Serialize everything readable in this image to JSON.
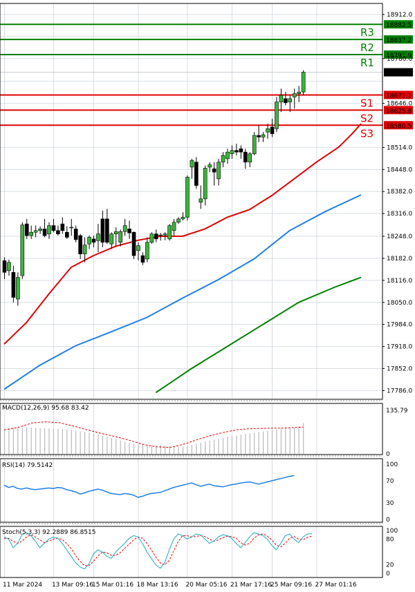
{
  "chart_data": {
    "type": "candlestick",
    "main": {
      "ylim": [
        17760,
        18945
      ],
      "y_ticks": [
        17786.0,
        17852.0,
        17918.0,
        17984.0,
        18050.0,
        18116.0,
        18182.0,
        18248.0,
        18316.0,
        18382.0,
        18448.0,
        18514.0,
        18580.5,
        18646.0,
        18712.0,
        18780.0,
        18846.0,
        18912.0
      ],
      "y_tick_labels": [
        "17786.0",
        "17852.0",
        "17918.0",
        "17984.0",
        "18050.0",
        "18116.0",
        "18182.0",
        "18248.0",
        "18316.0",
        "18382.0",
        "18448.0",
        "18514.0",
        "",
        "18646.0",
        "",
        "18780.0",
        "",
        "18912.0"
      ],
      "current_price": {
        "value": 18739.0,
        "label": "18739.0"
      },
      "levels": [
        {
          "name": "R3",
          "value": 18882.5,
          "label": "18882.5",
          "color": "#008000"
        },
        {
          "name": "R2",
          "value": 18837.2,
          "label": "18837.2",
          "color": "#008000"
        },
        {
          "name": "R1",
          "value": 18791.9,
          "label": "18791.9",
          "color": "#008000"
        },
        {
          "name": "S1",
          "value": 18671.1,
          "label": "18671.1",
          "color": "#e00000"
        },
        {
          "name": "S2",
          "value": 18625.8,
          "label": "18625.8",
          "color": "#e00000"
        },
        {
          "name": "S3",
          "value": 18580.5,
          "label": "18580.5",
          "color": "#e00000"
        }
      ],
      "candles": [
        [
          18175,
          18185,
          18120,
          18140
        ],
        [
          18145,
          18178,
          18130,
          18170
        ],
        [
          18140,
          18160,
          18050,
          18065
        ],
        [
          18060,
          18140,
          18040,
          18125
        ],
        [
          18130,
          18290,
          18120,
          18282
        ],
        [
          18285,
          18300,
          18240,
          18250
        ],
        [
          18250,
          18280,
          18240,
          18260
        ],
        [
          18260,
          18280,
          18245,
          18265
        ],
        [
          18265,
          18278,
          18255,
          18270
        ],
        [
          18270,
          18300,
          18245,
          18250
        ],
        [
          18255,
          18290,
          18240,
          18280
        ],
        [
          18280,
          18300,
          18260,
          18265
        ],
        [
          18265,
          18280,
          18250,
          18255
        ],
        [
          18285,
          18305,
          18255,
          18265
        ],
        [
          18260,
          18278,
          18240,
          18245
        ],
        [
          18275,
          18300,
          18250,
          18275
        ],
        [
          18270,
          18280,
          18230,
          18238
        ],
        [
          18250,
          18255,
          18180,
          18195
        ],
        [
          18195,
          18245,
          18170,
          18222
        ],
        [
          18225,
          18250,
          18210,
          18245
        ],
        [
          18240,
          18250,
          18215,
          18230
        ],
        [
          18235,
          18285,
          18200,
          18255
        ],
        [
          18300,
          18325,
          18215,
          18230
        ],
        [
          18300,
          18330,
          18225,
          18230
        ],
        [
          18225,
          18260,
          18210,
          18255
        ],
        [
          18255,
          18275,
          18220,
          18262
        ],
        [
          18230,
          18268,
          18218,
          18262
        ],
        [
          18262,
          18300,
          18250,
          18280
        ],
        [
          18270,
          18295,
          18240,
          18258
        ],
        [
          18260,
          18262,
          18180,
          18190
        ],
        [
          18205,
          18230,
          18176,
          18220
        ],
        [
          18190,
          18200,
          18162,
          18170
        ],
        [
          18180,
          18245,
          18170,
          18230
        ],
        [
          18230,
          18260,
          18225,
          18255
        ],
        [
          18255,
          18268,
          18230,
          18240
        ],
        [
          18252,
          18258,
          18235,
          18252
        ],
        [
          18252,
          18260,
          18236,
          18255
        ],
        [
          18240,
          18285,
          18235,
          18280
        ],
        [
          18265,
          18300,
          18250,
          18290
        ],
        [
          18290,
          18305,
          18285,
          18300
        ],
        [
          18300,
          18320,
          18295,
          18305
        ],
        [
          18305,
          18430,
          18295,
          18425
        ],
        [
          18455,
          18480,
          18420,
          18475
        ],
        [
          18470,
          18485,
          18390,
          18400
        ],
        [
          18350,
          18400,
          18330,
          18360
        ],
        [
          18360,
          18460,
          18340,
          18452
        ],
        [
          18455,
          18470,
          18440,
          18462
        ],
        [
          18450,
          18470,
          18400,
          18440
        ],
        [
          18420,
          18480,
          18400,
          18470
        ],
        [
          18470,
          18500,
          18455,
          18490
        ],
        [
          18480,
          18510,
          18465,
          18500
        ],
        [
          18495,
          18520,
          18480,
          18505
        ],
        [
          18505,
          18525,
          18490,
          18500
        ],
        [
          18510,
          18520,
          18480,
          18500
        ],
        [
          18500,
          18510,
          18450,
          18470
        ],
        [
          18470,
          18500,
          18455,
          18495
        ],
        [
          18495,
          18560,
          18490,
          18550
        ],
        [
          18550,
          18580,
          18530,
          18545
        ],
        [
          18545,
          18560,
          18530,
          18552
        ],
        [
          18560,
          18585,
          18540,
          18570
        ],
        [
          18575,
          18600,
          18545,
          18555
        ],
        [
          18570,
          18665,
          18560,
          18650
        ],
        [
          18650,
          18690,
          18620,
          18670
        ],
        [
          18660,
          18680,
          18640,
          18648
        ],
        [
          18650,
          18670,
          18620,
          18660
        ],
        [
          18665,
          18690,
          18630,
          18675
        ],
        [
          18675,
          18698,
          18650,
          18680
        ],
        [
          18680,
          18745,
          18670,
          18739
        ]
      ],
      "moving_averages": [
        {
          "color": "#e00000",
          "values": [
            [
              0,
              17925
            ],
            [
              5,
              17990
            ],
            [
              10,
              18075
            ],
            [
              15,
              18155
            ],
            [
              20,
              18190
            ],
            [
              25,
              18218
            ],
            [
              30,
              18236
            ],
            [
              35,
              18248
            ],
            [
              40,
              18248
            ],
            [
              45,
              18270
            ],
            [
              50,
              18305
            ],
            [
              55,
              18328
            ],
            [
              60,
              18370
            ],
            [
              65,
              18420
            ],
            [
              70,
              18470
            ],
            [
              75,
              18515
            ],
            [
              78,
              18555
            ],
            [
              80,
              18585
            ]
          ]
        },
        {
          "color": "#1e7ee8",
          "values": [
            [
              0,
              17790
            ],
            [
              8,
              17862
            ],
            [
              16,
              17920
            ],
            [
              24,
              17962
            ],
            [
              32,
              18005
            ],
            [
              40,
              18063
            ],
            [
              48,
              18118
            ],
            [
              56,
              18180
            ],
            [
              64,
              18265
            ],
            [
              72,
              18322
            ],
            [
              80,
              18372
            ]
          ]
        },
        {
          "color": "#008000",
          "values": [
            [
              34,
              17780
            ],
            [
              42,
              17852
            ],
            [
              50,
              17918
            ],
            [
              58,
              17984
            ],
            [
              66,
              18050
            ],
            [
              74,
              18095
            ],
            [
              80,
              18125
            ]
          ]
        }
      ]
    },
    "macd": {
      "label": "MACD(12,26,9) 95.68 83.42",
      "y_ticks": [
        {
          "value": 135.79,
          "label": "135.79"
        },
        {
          "value": 0,
          "label": "0"
        }
      ],
      "ylim": [
        0,
        140
      ],
      "histogram": [
        75,
        78,
        80,
        81,
        82,
        82,
        82,
        81,
        80,
        80,
        79,
        78,
        78,
        77,
        76,
        75,
        73,
        71,
        68,
        66,
        63,
        60,
        57,
        54,
        50,
        46,
        42,
        38,
        35,
        32,
        30,
        29,
        28,
        27,
        27,
        26,
        25,
        24,
        23,
        22,
        23,
        25,
        28,
        32,
        35,
        38,
        41,
        44,
        47,
        50,
        53,
        55,
        57,
        60,
        62,
        64,
        66,
        68,
        70,
        72,
        74,
        76,
        78,
        79,
        80,
        82,
        86,
        95.68
      ],
      "signal": [
        [
          0,
          75
        ],
        [
          5,
          82
        ],
        [
          10,
          96
        ],
        [
          15,
          100
        ],
        [
          20,
          97
        ],
        [
          25,
          87
        ],
        [
          30,
          75
        ],
        [
          35,
          64
        ],
        [
          40,
          54
        ],
        [
          45,
          43
        ],
        [
          50,
          30
        ],
        [
          55,
          22
        ],
        [
          60,
          20
        ],
        [
          62,
          24
        ],
        [
          66,
          33
        ],
        [
          70,
          45
        ],
        [
          75,
          58
        ],
        [
          80,
          68
        ],
        [
          84,
          75
        ],
        [
          88,
          78
        ],
        [
          92,
          79
        ],
        [
          96,
          80
        ],
        [
          100,
          80
        ],
        [
          108,
          83.42
        ]
      ],
      "signal_xlim": [
        0,
        108
      ]
    },
    "rsi": {
      "label": "RSI(14) 79.5142",
      "y_ticks": [
        {
          "value": 100,
          "label": "100"
        },
        {
          "value": 70,
          "label": "70"
        },
        {
          "value": 30,
          "label": "30"
        },
        {
          "value": 0,
          "label": "0"
        }
      ],
      "ylim": [
        0,
        100
      ],
      "values": [
        62,
        58,
        60,
        56,
        55,
        57,
        55,
        54,
        55,
        56,
        57,
        56,
        58,
        57,
        54,
        52,
        50,
        46,
        48,
        51,
        53,
        55,
        53,
        50,
        47,
        46,
        45,
        47,
        46,
        44,
        40,
        42,
        45,
        47,
        48,
        49,
        52,
        55,
        58,
        60,
        62,
        64,
        66,
        63,
        60,
        62,
        64,
        61,
        60,
        59,
        61,
        63,
        64,
        66,
        67,
        68,
        66,
        64,
        66,
        68,
        70,
        72,
        74,
        76,
        78,
        79.5142
      ]
    },
    "stoch": {
      "label": "Stoch(5,3,3) 92.2889 86.8515",
      "y_ticks": [
        {
          "value": 100,
          "label": "100"
        },
        {
          "value": 80,
          "label": "80"
        },
        {
          "value": 20,
          "label": "20"
        },
        {
          "value": 0,
          "label": "0"
        }
      ],
      "ylim": [
        0,
        100
      ],
      "k": [
        85,
        80,
        60,
        70,
        90,
        95,
        88,
        75,
        60,
        70,
        80,
        85,
        82,
        70,
        55,
        40,
        25,
        15,
        10,
        22,
        45,
        55,
        50,
        40,
        35,
        50,
        60,
        70,
        82,
        88,
        85,
        70,
        50,
        35,
        20,
        12,
        25,
        55,
        80,
        92,
        88,
        80,
        85,
        92,
        90,
        80,
        70,
        75,
        85,
        90,
        88,
        82,
        70,
        60,
        72,
        85,
        95,
        92,
        88,
        80,
        65,
        55,
        70,
        88,
        92,
        80,
        72,
        85,
        92,
        92.2889
      ],
      "d": [
        82,
        82,
        75,
        70,
        75,
        85,
        90,
        85,
        78,
        72,
        75,
        80,
        82,
        79,
        70,
        58,
        42,
        28,
        18,
        18,
        28,
        40,
        50,
        48,
        42,
        42,
        48,
        58,
        68,
        78,
        85,
        82,
        70,
        55,
        38,
        24,
        20,
        30,
        52,
        74,
        88,
        88,
        85,
        86,
        88,
        86,
        80,
        75,
        78,
        83,
        87,
        86,
        82,
        72,
        66,
        70,
        82,
        90,
        92,
        87,
        78,
        66,
        62,
        70,
        82,
        86,
        80,
        78,
        84,
        86.8515
      ]
    },
    "x_ticks": [
      {
        "label": "11 Mar 2024",
        "idx": 0
      },
      {
        "label": "13 Mar 09:16",
        "idx": 11
      },
      {
        "label": "15 Mar 01:16",
        "idx": 20
      },
      {
        "label": "18 Mar 13:16",
        "idx": 30
      },
      {
        "label": "20 Mar 05:16",
        "idx": 41
      },
      {
        "label": "21 Mar 17:16",
        "idx": 51
      },
      {
        "label": "25 Mar 09:16",
        "idx": 60
      },
      {
        "label": "27 Mar 01:16",
        "idx": 70
      }
    ]
  }
}
